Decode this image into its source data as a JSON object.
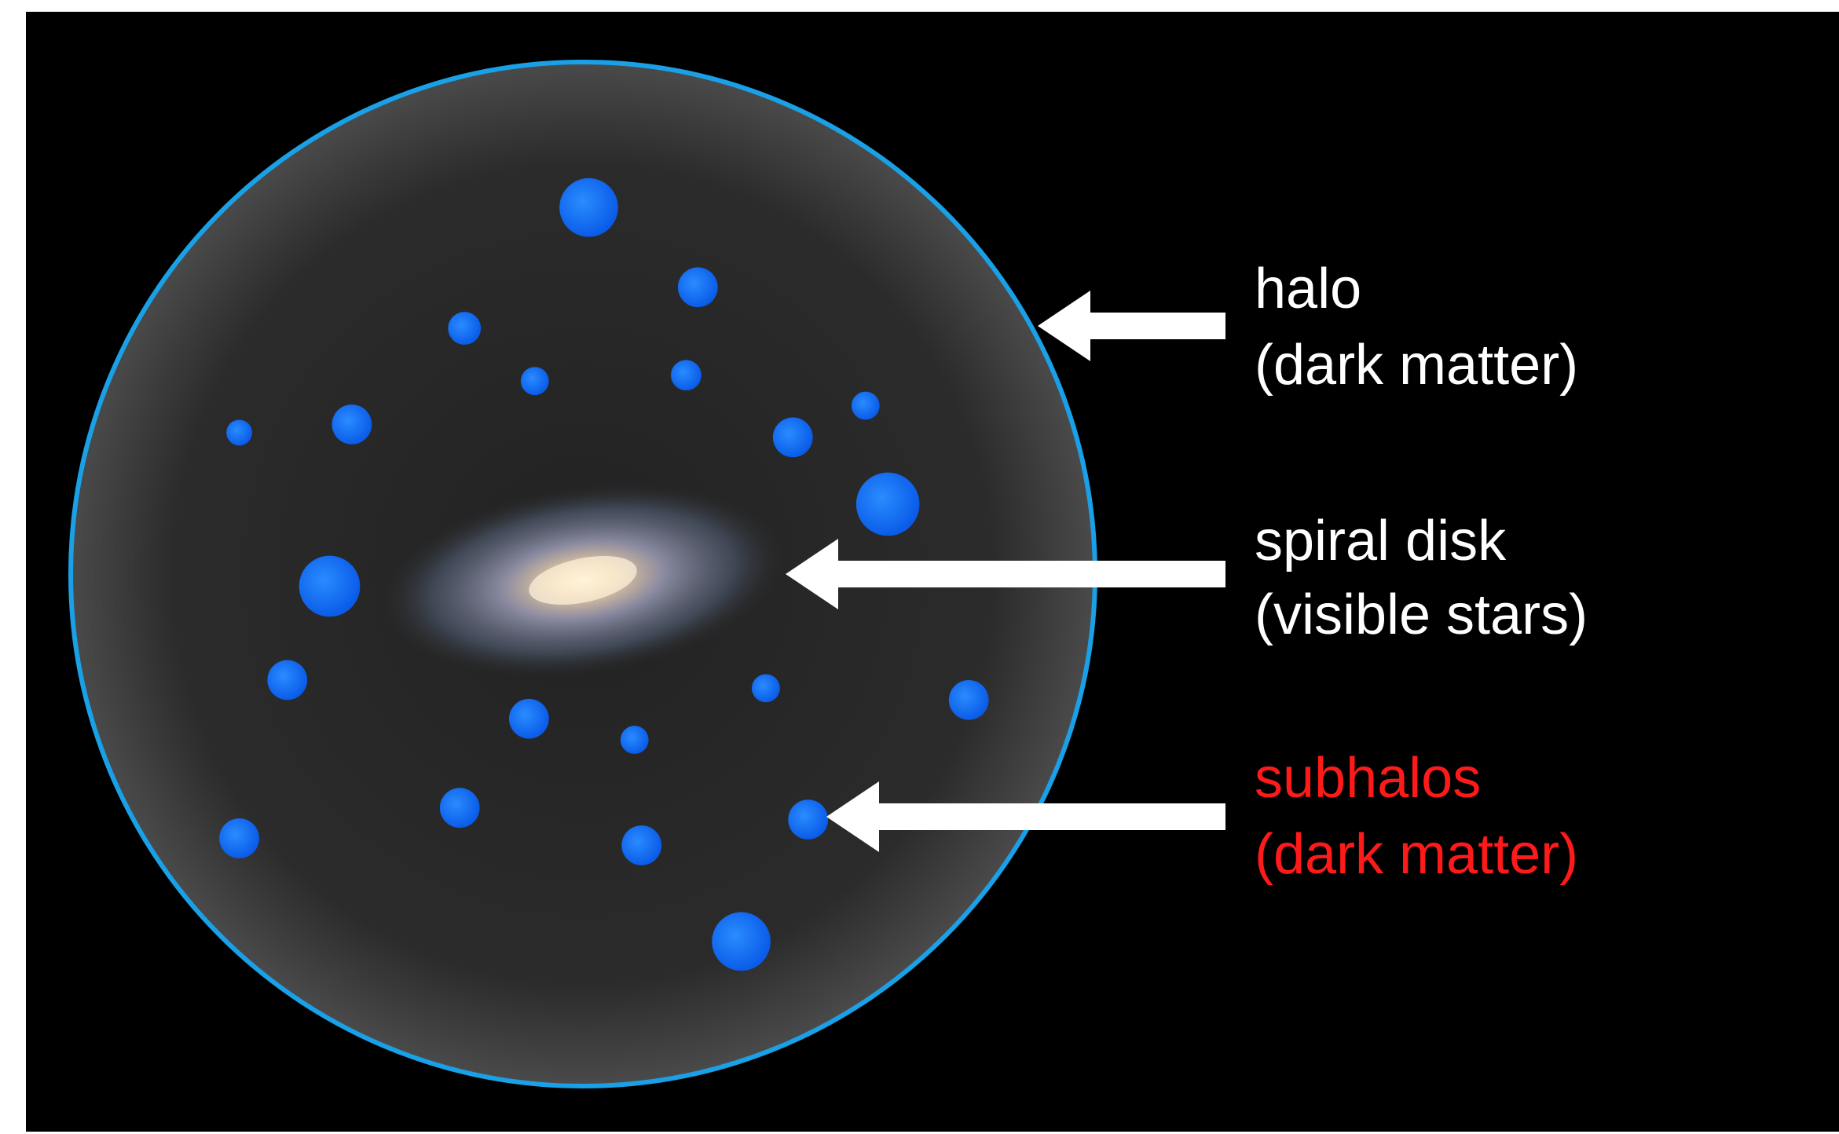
{
  "labels": [
    {
      "title": "halo",
      "subtitle": "(dark matter)"
    },
    {
      "title": "spiral disk",
      "subtitle": "(visible stars)"
    },
    {
      "title": "subhalos",
      "subtitle": "(dark matter)"
    }
  ]
}
